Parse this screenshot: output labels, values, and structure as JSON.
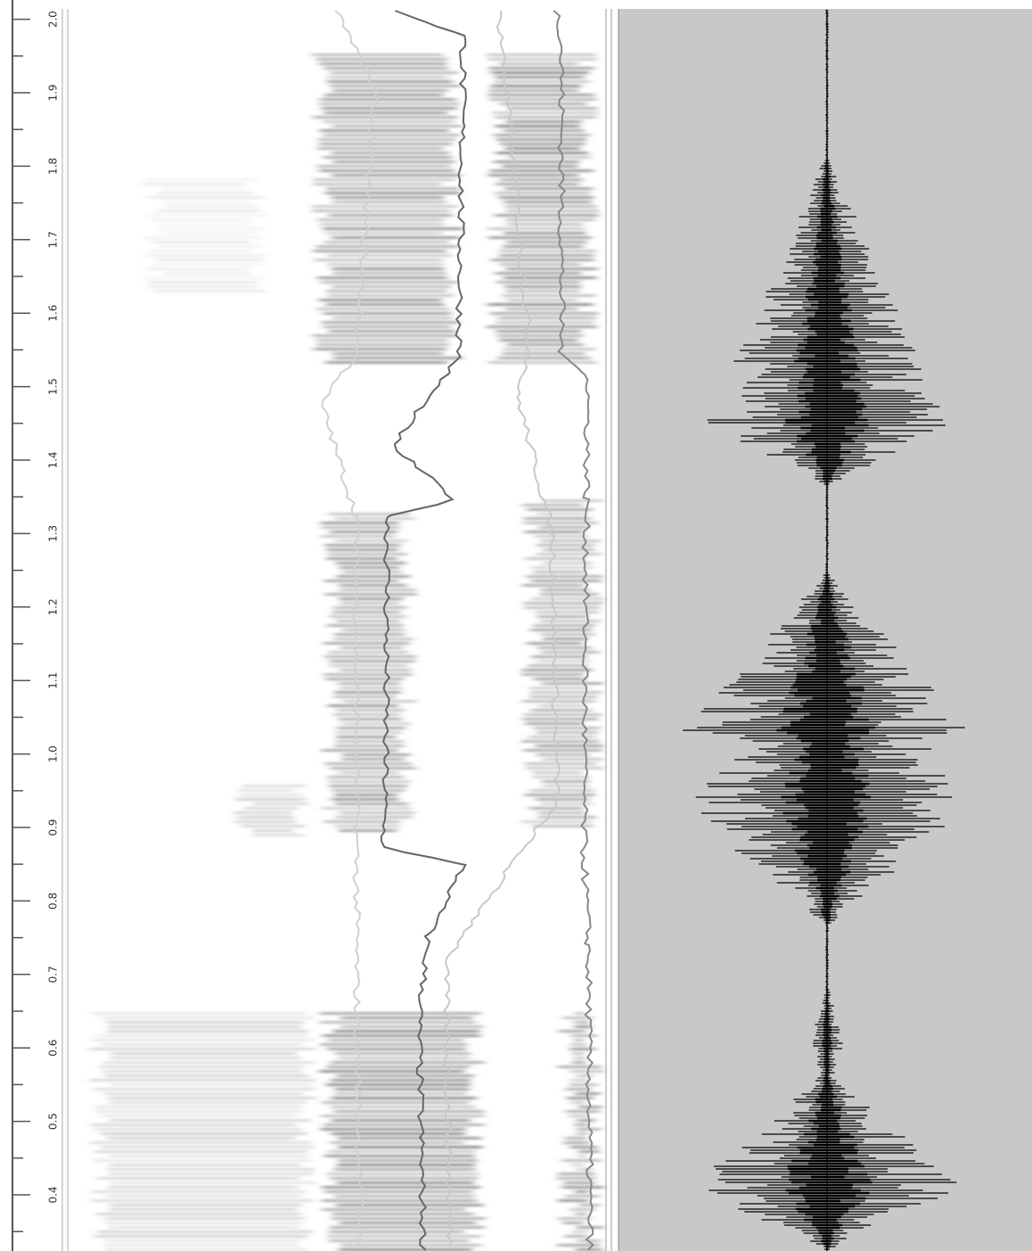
{
  "time_axis": {
    "tick_labels": [
      "0.4",
      "0.5",
      "0.6",
      "0.7",
      "0.8",
      "0.9",
      "1.0",
      "1.1",
      "1.2",
      "1.3",
      "1.4",
      "1.5",
      "1.6",
      "1.7",
      "1.8",
      "1.9",
      "2.0"
    ]
  }
}
